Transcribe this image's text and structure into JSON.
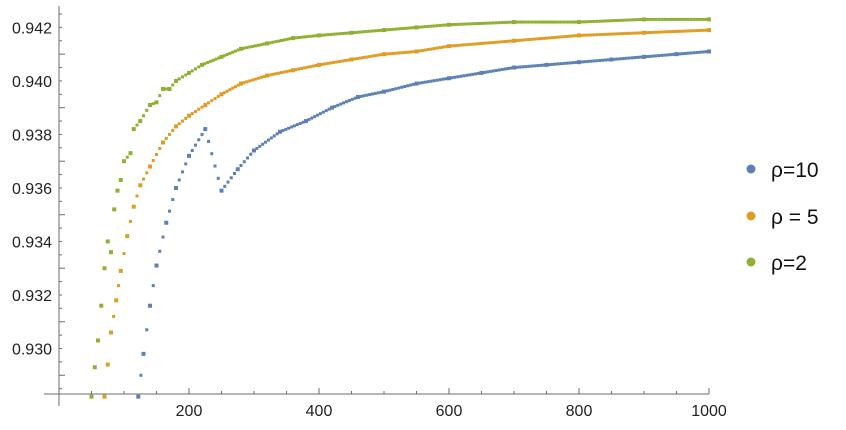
{
  "chart_data": {
    "type": "scatter",
    "title": "",
    "xlabel": "",
    "ylabel": "",
    "xlim": [
      0,
      1000
    ],
    "ylim": [
      0.9283,
      0.9428
    ],
    "x_ticks": [
      200,
      400,
      600,
      800,
      1000
    ],
    "x_tick_labels": [
      "200",
      "400",
      "600",
      "800",
      "1000"
    ],
    "y_ticks": [
      0.93,
      0.932,
      0.934,
      0.936,
      0.938,
      0.94,
      0.942
    ],
    "y_tick_labels": [
      "0.930",
      "0.932",
      "0.934",
      "0.936",
      "0.938",
      "0.940",
      "0.942"
    ],
    "grid": false,
    "legend_position": "right",
    "series": [
      {
        "name": "ρ=10",
        "color": "#5E81B5",
        "points": [
          [
            122,
            0.9282
          ],
          [
            130,
            0.9298
          ],
          [
            140,
            0.9316
          ],
          [
            150,
            0.9331
          ],
          [
            165,
            0.9347
          ],
          [
            180,
            0.936
          ],
          [
            200,
            0.9372
          ],
          [
            225,
            0.9382
          ],
          [
            250,
            0.9359
          ],
          [
            275,
            0.9367
          ],
          [
            300,
            0.9374
          ],
          [
            340,
            0.9381
          ],
          [
            380,
            0.9385
          ],
          [
            420,
            0.939
          ],
          [
            460,
            0.9394
          ],
          [
            500,
            0.9396
          ],
          [
            550,
            0.9399
          ],
          [
            600,
            0.9401
          ],
          [
            650,
            0.9403
          ],
          [
            700,
            0.9405
          ],
          [
            750,
            0.9406
          ],
          [
            800,
            0.9407
          ],
          [
            850,
            0.9408
          ],
          [
            900,
            0.9409
          ],
          [
            950,
            0.941
          ],
          [
            1000,
            0.9411
          ]
        ]
      },
      {
        "name": "ρ = 5",
        "color": "#E19C24",
        "points": [
          [
            70,
            0.9282
          ],
          [
            75,
            0.9294
          ],
          [
            80,
            0.9306
          ],
          [
            88,
            0.9318
          ],
          [
            95,
            0.9329
          ],
          [
            105,
            0.9342
          ],
          [
            115,
            0.9353
          ],
          [
            125,
            0.9361
          ],
          [
            140,
            0.9368
          ],
          [
            160,
            0.9377
          ],
          [
            180,
            0.9383
          ],
          [
            200,
            0.9387
          ],
          [
            225,
            0.9391
          ],
          [
            250,
            0.9395
          ],
          [
            280,
            0.9399
          ],
          [
            320,
            0.9402
          ],
          [
            360,
            0.9404
          ],
          [
            400,
            0.9406
          ],
          [
            450,
            0.9408
          ],
          [
            500,
            0.941
          ],
          [
            550,
            0.9411
          ],
          [
            600,
            0.9413
          ],
          [
            700,
            0.9415
          ],
          [
            800,
            0.9417
          ],
          [
            900,
            0.9418
          ],
          [
            1000,
            0.9419
          ]
        ]
      },
      {
        "name": "ρ=2",
        "color": "#8FB032",
        "points": [
          [
            50,
            0.9282
          ],
          [
            55,
            0.9293
          ],
          [
            60,
            0.9303
          ],
          [
            65,
            0.9316
          ],
          [
            70,
            0.933
          ],
          [
            75,
            0.934
          ],
          [
            80,
            0.9336
          ],
          [
            85,
            0.9352
          ],
          [
            90,
            0.9359
          ],
          [
            95,
            0.9363
          ],
          [
            100,
            0.937
          ],
          [
            110,
            0.9373
          ],
          [
            115,
            0.9382
          ],
          [
            125,
            0.9385
          ],
          [
            140,
            0.9391
          ],
          [
            150,
            0.9392
          ],
          [
            160,
            0.9397
          ],
          [
            170,
            0.9397
          ],
          [
            180,
            0.94
          ],
          [
            200,
            0.9403
          ],
          [
            220,
            0.9406
          ],
          [
            250,
            0.9409
          ],
          [
            280,
            0.9412
          ],
          [
            320,
            0.9414
          ],
          [
            360,
            0.9416
          ],
          [
            400,
            0.9417
          ],
          [
            450,
            0.9418
          ],
          [
            500,
            0.9419
          ],
          [
            550,
            0.942
          ],
          [
            600,
            0.9421
          ],
          [
            700,
            0.9422
          ],
          [
            800,
            0.9422
          ],
          [
            900,
            0.9423
          ],
          [
            1000,
            0.9423
          ]
        ]
      }
    ]
  }
}
